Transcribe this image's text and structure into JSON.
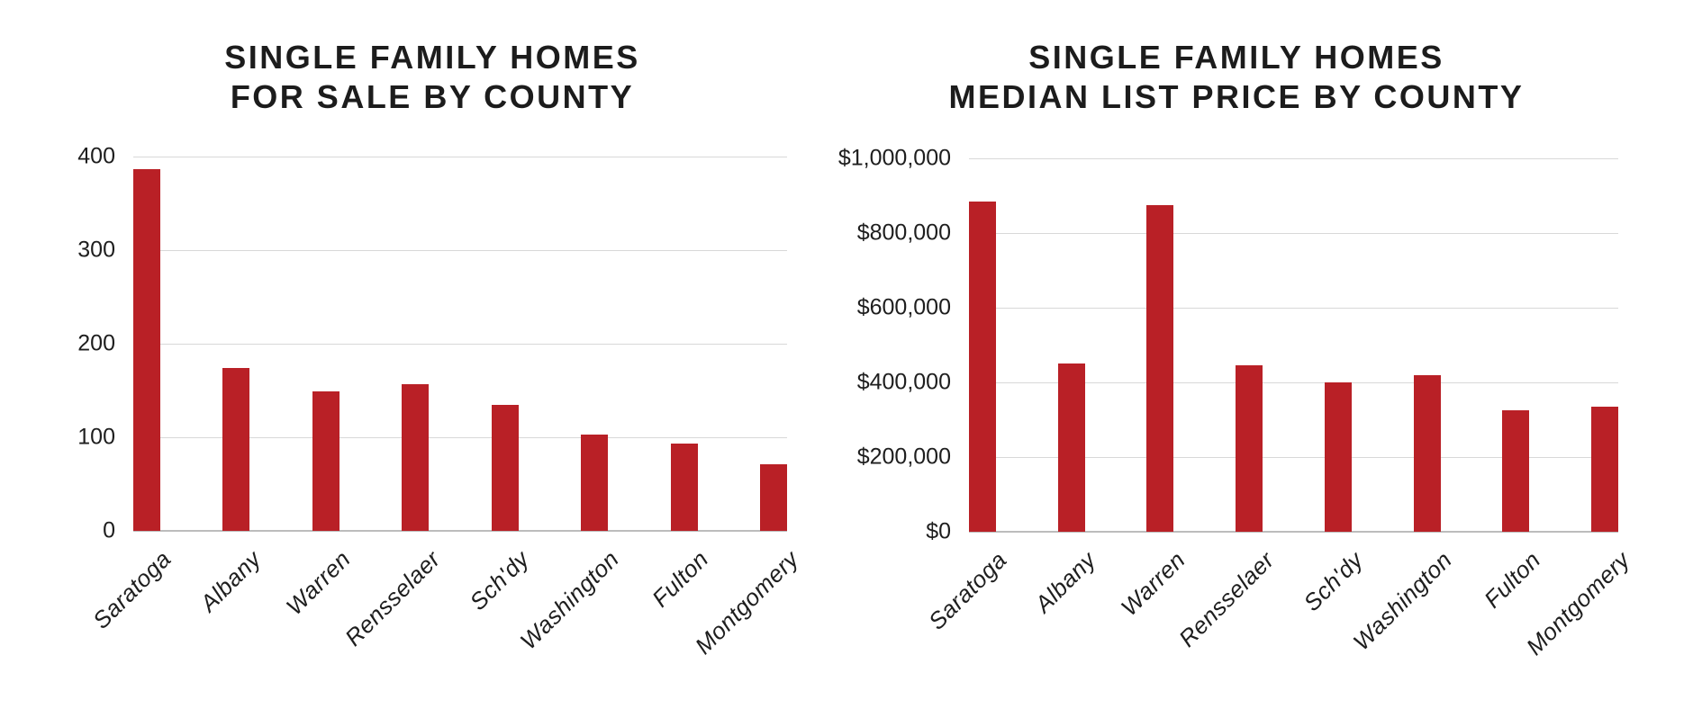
{
  "chart_data": [
    {
      "type": "bar",
      "title": "SINGLE FAMILY HOMES FOR SALE BY COUNTY",
      "title_lines": [
        "SINGLE FAMILY HOMES",
        "FOR SALE BY COUNTY"
      ],
      "categories": [
        "Saratoga",
        "Albany",
        "Warren",
        "Rensselaer",
        "Sch'dy",
        "Washington",
        "Fulton",
        "Montgomery"
      ],
      "values": [
        387,
        174,
        149,
        157,
        135,
        103,
        93,
        71
      ],
      "xlabel": "",
      "ylabel": "",
      "ylim": [
        0,
        400
      ],
      "ytick_step": 100,
      "ytick_labels": [
        "0",
        "100",
        "200",
        "300",
        "400"
      ],
      "grid": true,
      "legend": false,
      "bar_color": "#b92026"
    },
    {
      "type": "bar",
      "title": "SINGLE FAMILY HOMES MEDIAN LIST PRICE BY COUNTY",
      "title_lines": [
        "SINGLE FAMILY HOMES",
        "MEDIAN LIST PRICE BY COUNTY"
      ],
      "categories": [
        "Saratoga",
        "Albany",
        "Warren",
        "Rensselaer",
        "Sch'dy",
        "Washington",
        "Fulton",
        "Montgomery"
      ],
      "values": [
        885000,
        450000,
        875000,
        445000,
        400000,
        420000,
        325000,
        335000
      ],
      "xlabel": "",
      "ylabel": "",
      "ylim": [
        0,
        1000000
      ],
      "ytick_step": 200000,
      "ytick_labels": [
        "$0",
        "$200,000",
        "$400,000",
        "$600,000",
        "$800,000",
        "$1,000,000"
      ],
      "grid": true,
      "legend": false,
      "bar_color": "#b92026"
    }
  ],
  "page": {
    "background": "#ffffff",
    "gridline_color": "#d8d8d8",
    "baseline_color": "#bcbcbc",
    "text_color": "#1e1e1e"
  }
}
